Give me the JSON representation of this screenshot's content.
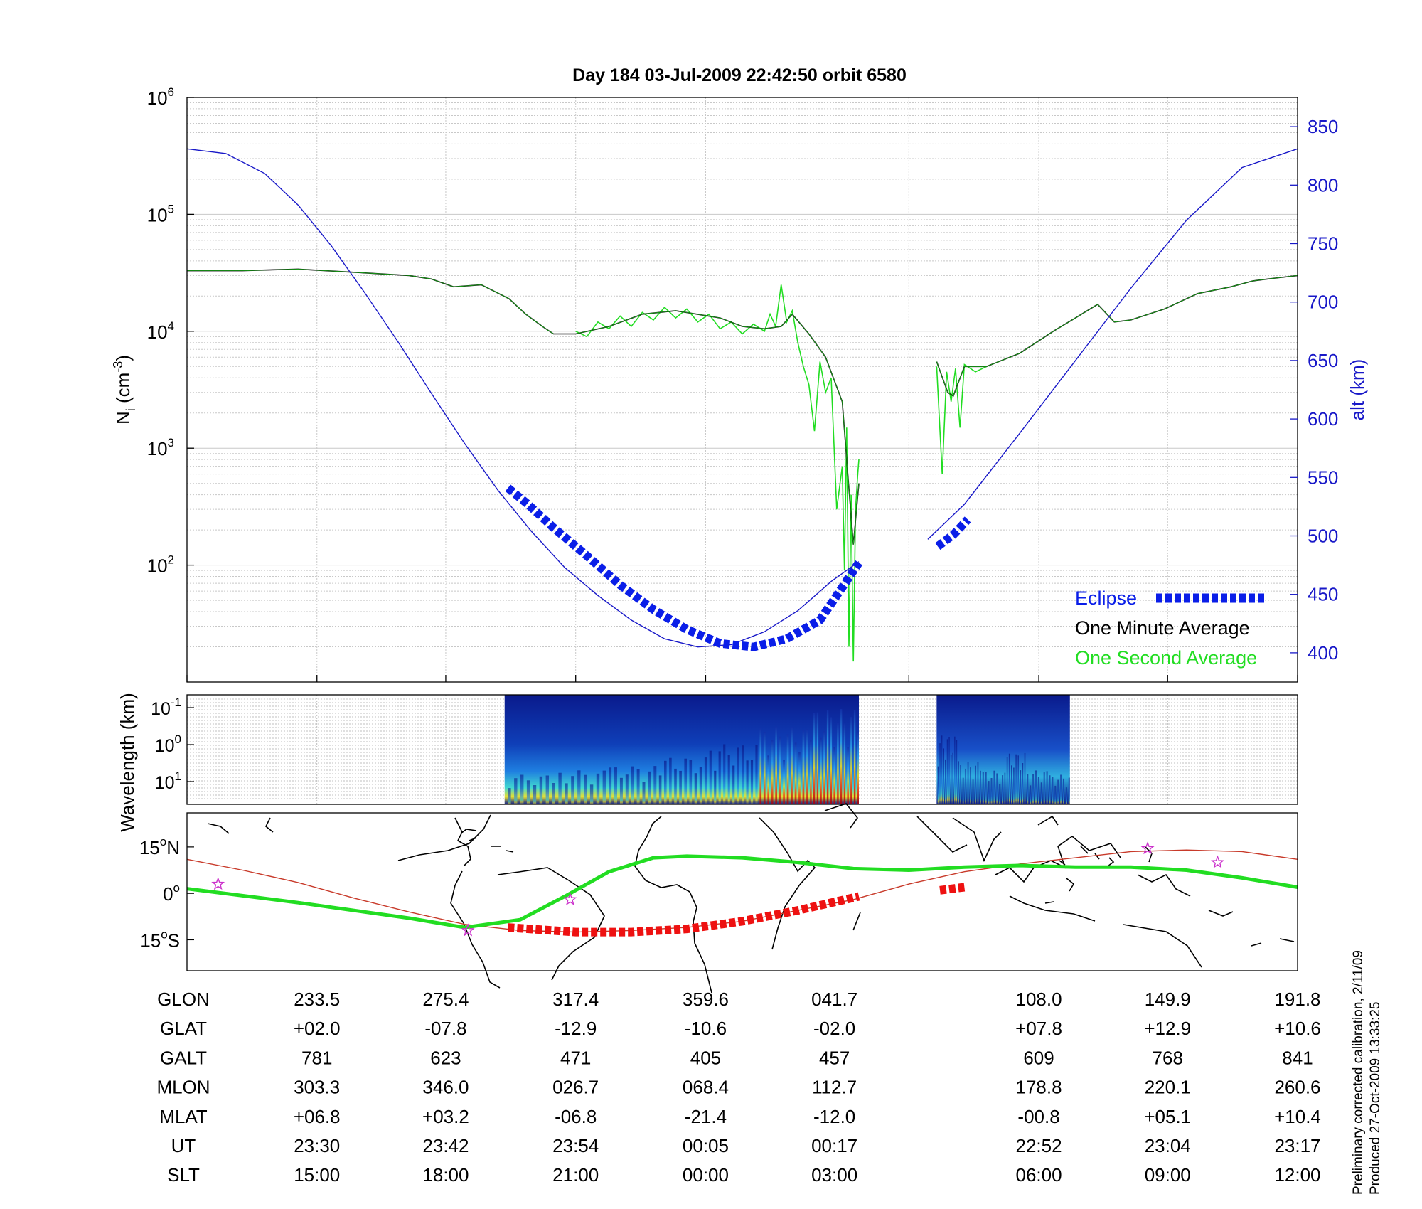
{
  "title": "Day 184  03-Jul-2009 22:42:50   orbit 6580",
  "colors": {
    "altitude": "#1818c8",
    "eclipse": "#0a1ee8",
    "one_minute": "#000000",
    "one_second": "#22dd22",
    "map_green": "#22dd22",
    "map_red_track": "#c83a2a",
    "map_red_thick": "#ee1111",
    "star": "#cc33cc",
    "grid": "#c8c8c8"
  },
  "side_text": {
    "line1": "Preliminary corrected calibration, 2/11/09",
    "line2": "Produced 27-Oct-2009 13:33:25"
  },
  "chart_data": [
    {
      "type": "line",
      "panel": "density",
      "title": "Day 184  03-Jul-2009 22:42:50   orbit 6580",
      "ylabel_left": {
        "base": "N",
        "sub": "i",
        "unit_pre": " (cm",
        "unit_sup": "-3",
        "unit_post": ")"
      },
      "ylabel_right": "alt (km)",
      "y_left_scale": "log",
      "y_left_ticks": [
        {
          "base": "10",
          "exp": "2",
          "value": 100
        },
        {
          "base": "10",
          "exp": "3",
          "value": 1000
        },
        {
          "base": "10",
          "exp": "4",
          "value": 10000
        },
        {
          "base": "10",
          "exp": "5",
          "value": 100000
        },
        {
          "base": "10",
          "exp": "6",
          "value": 1000000
        }
      ],
      "y_left_range": [
        10,
        1000000
      ],
      "y_right_ticks": [
        "400",
        "450",
        "500",
        "550",
        "600",
        "650",
        "700",
        "750",
        "800",
        "850"
      ],
      "y_right_range": [
        375,
        875
      ],
      "x_range": [
        0,
        1
      ],
      "grid": true,
      "legend": {
        "placement": "bottom-right",
        "entries": [
          {
            "label": "Eclipse",
            "style": "eclipse"
          },
          {
            "label": "One Minute Average",
            "style": "one_minute"
          },
          {
            "label": "One Second Average",
            "style": "one_second"
          }
        ]
      },
      "altitude": {
        "x": [
          0,
          0.035,
          0.07,
          0.1,
          0.13,
          0.16,
          0.19,
          0.22,
          0.25,
          0.28,
          0.31,
          0.34,
          0.37,
          0.4,
          0.43,
          0.46,
          0.49,
          0.52,
          0.55,
          0.58,
          0.605,
          0.635,
          0.667,
          0.7,
          0.75,
          0.8,
          0.85,
          0.9,
          0.95,
          1.0
        ],
        "y": [
          831,
          827,
          810,
          783,
          748,
          708,
          666,
          622,
          579,
          539,
          504,
          473,
          449,
          428,
          412,
          405,
          407,
          418,
          436,
          461,
          478,
          null,
          497,
          527,
          588,
          650,
          712,
          770,
          815,
          831
        ]
      },
      "eclipse_segments": [
        {
          "x": [
            0.289,
            0.307,
            0.33,
            0.36,
            0.39,
            0.42,
            0.45,
            0.48,
            0.51,
            0.54,
            0.57,
            0.605
          ],
          "alt": [
            541,
            527,
            507,
            483,
            458,
            437,
            420,
            408,
            405,
            412,
            428,
            477
          ]
        },
        {
          "x": [
            0.676,
            0.69,
            0.703
          ],
          "alt": [
            491,
            501,
            514
          ]
        }
      ],
      "density_one_minute": {
        "x": [
          0,
          0.05,
          0.1,
          0.15,
          0.2,
          0.22,
          0.24,
          0.265,
          0.29,
          0.305,
          0.32,
          0.33,
          0.345,
          0.35,
          0.38,
          0.41,
          0.44,
          0.48,
          0.5,
          0.52,
          0.535,
          0.545,
          0.56,
          0.575,
          0.59,
          0.595,
          0.6,
          0.605,
          null,
          0.675,
          0.685,
          0.69,
          0.7,
          0.72,
          0.75,
          0.78,
          0.8,
          0.82,
          0.835,
          0.85,
          0.88,
          0.91,
          0.94,
          0.96,
          0.98,
          1.0
        ],
        "y": [
          33000,
          33000,
          34000,
          32000,
          30000,
          28000,
          24000,
          25000,
          19000,
          14000,
          11000,
          9500,
          9500,
          9500,
          11000,
          14000,
          15000,
          13000,
          11000,
          10500,
          11000,
          14000,
          9500,
          6000,
          2500,
          600,
          150,
          500,
          null,
          5500,
          3000,
          2800,
          5000,
          5000,
          6500,
          10000,
          13000,
          17000,
          12000,
          12500,
          15500,
          21000,
          24000,
          27000,
          28500,
          30000
        ]
      },
      "density_one_second": {
        "x": [
          0.35,
          0.36,
          0.37,
          0.38,
          0.39,
          0.4,
          0.41,
          0.42,
          0.43,
          0.44,
          0.45,
          0.46,
          0.47,
          0.48,
          0.49,
          0.5,
          0.51,
          0.52,
          0.525,
          0.53,
          0.535,
          0.54,
          0.545,
          0.55,
          0.555,
          0.56,
          0.565,
          0.57,
          0.575,
          0.58,
          0.585,
          0.59,
          0.592,
          0.594,
          0.596,
          0.598,
          0.6,
          0.602,
          0.604,
          0.605,
          null,
          0.675,
          0.68,
          0.684,
          0.688,
          0.692,
          0.696,
          0.7,
          0.71,
          0.72
        ],
        "y": [
          10000,
          9000,
          12000,
          10500,
          13500,
          11000,
          14500,
          12500,
          16000,
          13000,
          15500,
          12000,
          14000,
          10500,
          12000,
          9500,
          11500,
          10000,
          14000,
          11000,
          25000,
          12000,
          15000,
          8000,
          5000,
          3500,
          1400,
          5500,
          3000,
          4000,
          300,
          700,
          90,
          1500,
          20,
          400,
          15,
          300,
          600,
          800,
          null,
          5000,
          600,
          4500,
          2500,
          4800,
          1500,
          5200,
          4500,
          5000
        ]
      },
      "x_ticks": [
        0,
        0.117,
        0.233,
        0.35,
        0.467,
        0.65,
        0.767,
        0.883,
        1.0
      ]
    },
    {
      "type": "heatmap",
      "panel": "spectrogram",
      "ylabel": "Wavelength (km)",
      "y_scale": "log",
      "y_ticks": [
        {
          "base": "10",
          "exp": "-1"
        },
        {
          "base": "10",
          "exp": "0"
        },
        {
          "base": "10",
          "exp": "1"
        }
      ],
      "data_segments": [
        {
          "x": [
            0.286,
            0.605
          ],
          "mean_intensity": [
            0.15,
            0.2,
            0.25,
            0.35,
            0.5,
            0.7,
            0.9
          ]
        },
        {
          "x": [
            0.675,
            0.795
          ],
          "mean_intensity": [
            0.6,
            0.3,
            0.2,
            0.4,
            0.2,
            0.15
          ]
        }
      ],
      "colormap": "jet"
    },
    {
      "type": "line",
      "panel": "map",
      "y_ticks": [
        {
          "value": "15",
          "deg": "o",
          "hemi": "N",
          "lat": 15
        },
        {
          "value": "0",
          "deg": "o",
          "hemi": "",
          "lat": 0
        },
        {
          "value": "15",
          "deg": "o",
          "hemi": "S",
          "lat": -15
        }
      ],
      "y_range": [
        -25,
        26
      ],
      "magnetic_equator": {
        "x": [
          0,
          0.1,
          0.2,
          0.25,
          0.3,
          0.34,
          0.38,
          0.42,
          0.45,
          0.5,
          0.55,
          0.6,
          0.65,
          0.7,
          0.75,
          0.8,
          0.85,
          0.9,
          0.95,
          1.0
        ],
        "lat": [
          1.5,
          -3,
          -8,
          -11,
          -8.5,
          -1,
          7,
          11.5,
          12,
          11.5,
          10,
          8,
          7.5,
          8.5,
          9,
          8.5,
          8.5,
          7.5,
          5,
          2
        ]
      },
      "orbit_track": {
        "x": [
          0,
          0.05,
          0.1,
          0.15,
          0.2,
          0.25,
          0.3,
          0.35,
          0.4,
          0.45,
          0.5,
          0.55,
          0.6,
          0.65,
          0.7,
          0.75,
          0.8,
          0.85,
          0.9,
          0.95,
          1.0
        ],
        "lat": [
          11,
          7.5,
          3.5,
          -1.5,
          -6,
          -10,
          -12,
          -12.5,
          -12,
          -11,
          -9,
          -5.5,
          -2,
          3,
          7,
          9.5,
          11.5,
          13.5,
          14,
          13.5,
          11
        ]
      },
      "eclipse_track": [
        {
          "x": [
            0.289,
            0.35,
            0.4,
            0.45,
            0.5,
            0.55,
            0.605
          ],
          "lat": [
            -11,
            -12.5,
            -12.5,
            -11.5,
            -9,
            -5.5,
            -1
          ]
        },
        {
          "x": [
            0.678,
            0.7
          ],
          "lat": [
            1,
            2
          ]
        }
      ],
      "stars": [
        {
          "x": 0.028,
          "lat": 3
        },
        {
          "x": 0.253,
          "lat": -12
        },
        {
          "x": 0.345,
          "lat": -2
        },
        {
          "x": 0.865,
          "lat": 14.5
        },
        {
          "x": 0.928,
          "lat": 10
        }
      ]
    },
    {
      "type": "table",
      "panel": "orbit-info",
      "row_labels": [
        "GLON",
        "GLAT",
        "GALT",
        "MLON",
        "MLAT",
        "UT",
        "SLT"
      ],
      "columns": [
        [
          "233.5",
          "+02.0",
          "781",
          "303.3",
          "+06.8",
          "23:30",
          "15:00"
        ],
        [
          "275.4",
          "-07.8",
          "623",
          "346.0",
          "+03.2",
          "23:42",
          "18:00"
        ],
        [
          "317.4",
          "-12.9",
          "471",
          "026.7",
          "-06.8",
          "23:54",
          "21:00"
        ],
        [
          "359.6",
          "-10.6",
          "405",
          "068.4",
          "-21.4",
          "00:05",
          "00:00"
        ],
        [
          "041.7",
          "-02.0",
          "457",
          "112.7",
          "-12.0",
          "00:17",
          "03:00"
        ],
        [
          "108.0",
          "+07.8",
          "609",
          "178.8",
          "-00.8",
          "22:52",
          "06:00"
        ],
        [
          "149.9",
          "+12.9",
          "768",
          "220.1",
          "+05.1",
          "23:04",
          "09:00"
        ],
        [
          "191.8",
          "+10.6",
          "841",
          "260.6",
          "+10.4",
          "23:17",
          "12:00"
        ]
      ],
      "column_x": [
        0.117,
        0.233,
        0.35,
        0.467,
        0.583,
        0.767,
        0.883,
        1.0
      ]
    }
  ]
}
